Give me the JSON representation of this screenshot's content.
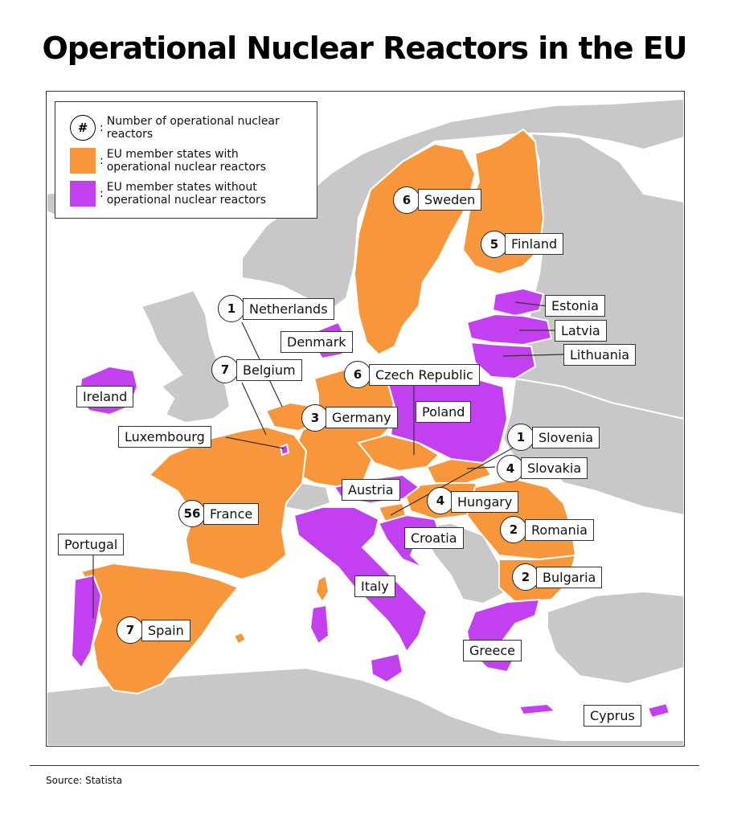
{
  "title": "Operational Nuclear Reactors in the EU",
  "colors": {
    "with_reactors": "#f7963a",
    "without_reactors": "#c340f0",
    "non_eu_land": "#c8c8c8",
    "sea": "#ffffff"
  },
  "legend": {
    "number_symbol": "#",
    "number_label": "Number of operational nuclear reactors",
    "with_label": "EU member states with operational nuclear reactors",
    "without_label": "EU member states without operational nuclear reactors"
  },
  "countries": {
    "sweden": {
      "name": "Sweden",
      "reactors": "6"
    },
    "finland": {
      "name": "Finland",
      "reactors": "5"
    },
    "estonia": {
      "name": "Estonia"
    },
    "latvia": {
      "name": "Latvia"
    },
    "lithuania": {
      "name": "Lithuania"
    },
    "netherlands": {
      "name": "Netherlands",
      "reactors": "1"
    },
    "denmark": {
      "name": "Denmark"
    },
    "belgium": {
      "name": "Belgium",
      "reactors": "7"
    },
    "czech": {
      "name": "Czech Republic",
      "reactors": "6"
    },
    "ireland": {
      "name": "Ireland"
    },
    "poland": {
      "name": "Poland"
    },
    "germany": {
      "name": "Germany",
      "reactors": "3"
    },
    "luxembourg": {
      "name": "Luxembourg"
    },
    "slovenia": {
      "name": "Slovenia",
      "reactors": "1"
    },
    "slovakia": {
      "name": "Slovakia",
      "reactors": "4"
    },
    "austria": {
      "name": "Austria"
    },
    "hungary": {
      "name": "Hungary",
      "reactors": "4"
    },
    "france": {
      "name": "France",
      "reactors": "56"
    },
    "romania": {
      "name": "Romania",
      "reactors": "2"
    },
    "croatia": {
      "name": "Croatia"
    },
    "portugal": {
      "name": "Portugal"
    },
    "bulgaria": {
      "name": "Bulgaria",
      "reactors": "2"
    },
    "italy": {
      "name": "Italy"
    },
    "spain": {
      "name": "Spain",
      "reactors": "7"
    },
    "greece": {
      "name": "Greece"
    },
    "cyprus": {
      "name": "Cyprus"
    }
  },
  "source": "Source: Statista"
}
